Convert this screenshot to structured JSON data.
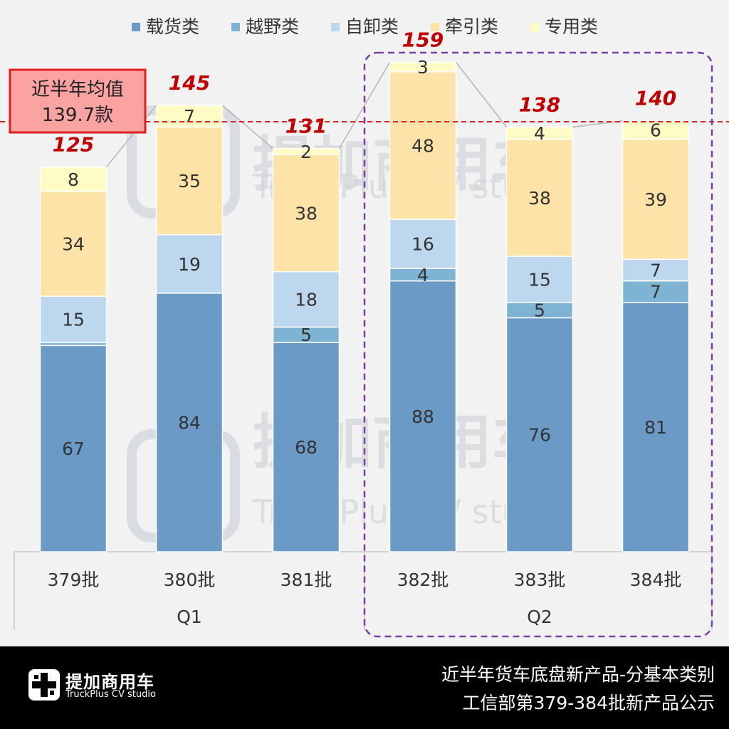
{
  "chart_data": {
    "type": "bar",
    "stacked": true,
    "categories": [
      "379批",
      "380批",
      "381批",
      "382批",
      "383批",
      "384批"
    ],
    "groups": [
      {
        "label": "Q1",
        "categories": [
          "379批",
          "380批",
          "381批"
        ]
      },
      {
        "label": "Q2",
        "categories": [
          "382批",
          "383批",
          "384批"
        ]
      }
    ],
    "series": [
      {
        "name": "载货类",
        "color": "#6a9ac5",
        "values": [
          67,
          84,
          68,
          88,
          76,
          81
        ]
      },
      {
        "name": "越野类",
        "color": "#7fb3d3",
        "values": [
          1,
          0,
          5,
          4,
          5,
          7
        ]
      },
      {
        "name": "自卸类",
        "color": "#bdd7ee",
        "values": [
          15,
          19,
          18,
          16,
          15,
          7
        ]
      },
      {
        "name": "牵引类",
        "color": "#fde3a7",
        "values": [
          34,
          35,
          38,
          48,
          38,
          39
        ]
      },
      {
        "name": "专用类",
        "color": "#fefcc4",
        "values": [
          8,
          7,
          2,
          3,
          4,
          6
        ]
      }
    ],
    "value_labels": [
      [
        "67",
        "",
        "15",
        "34",
        "8"
      ],
      [
        "84",
        "",
        "19",
        "35",
        "7"
      ],
      [
        "68",
        "5",
        "18",
        "38",
        "2"
      ],
      [
        "88",
        "4",
        "16",
        "48",
        "3"
      ],
      [
        "76",
        "5",
        "15",
        "38",
        "4"
      ],
      [
        "81",
        "7",
        "7",
        "39",
        "6"
      ]
    ],
    "totals": [
      125,
      145,
      131,
      159,
      138,
      140
    ],
    "average": {
      "value": 139.7,
      "line1": "近半年均值",
      "line2": "139.7款"
    },
    "ylim": [
      0,
      170
    ],
    "legend_position": "top-center",
    "highlight_group": "Q2",
    "title": "",
    "xlabel": "",
    "ylabel": ""
  },
  "watermark": {
    "cn": "提加商用车",
    "en": "TruckPlus CV studio"
  },
  "footer": {
    "brand_cn": "提加商用车",
    "brand_en": "TruckPlus CV studio",
    "title_line1": "近半年货车底盘新产品-分基本类别",
    "title_line2": "工信部第379-384批新产品公示"
  }
}
